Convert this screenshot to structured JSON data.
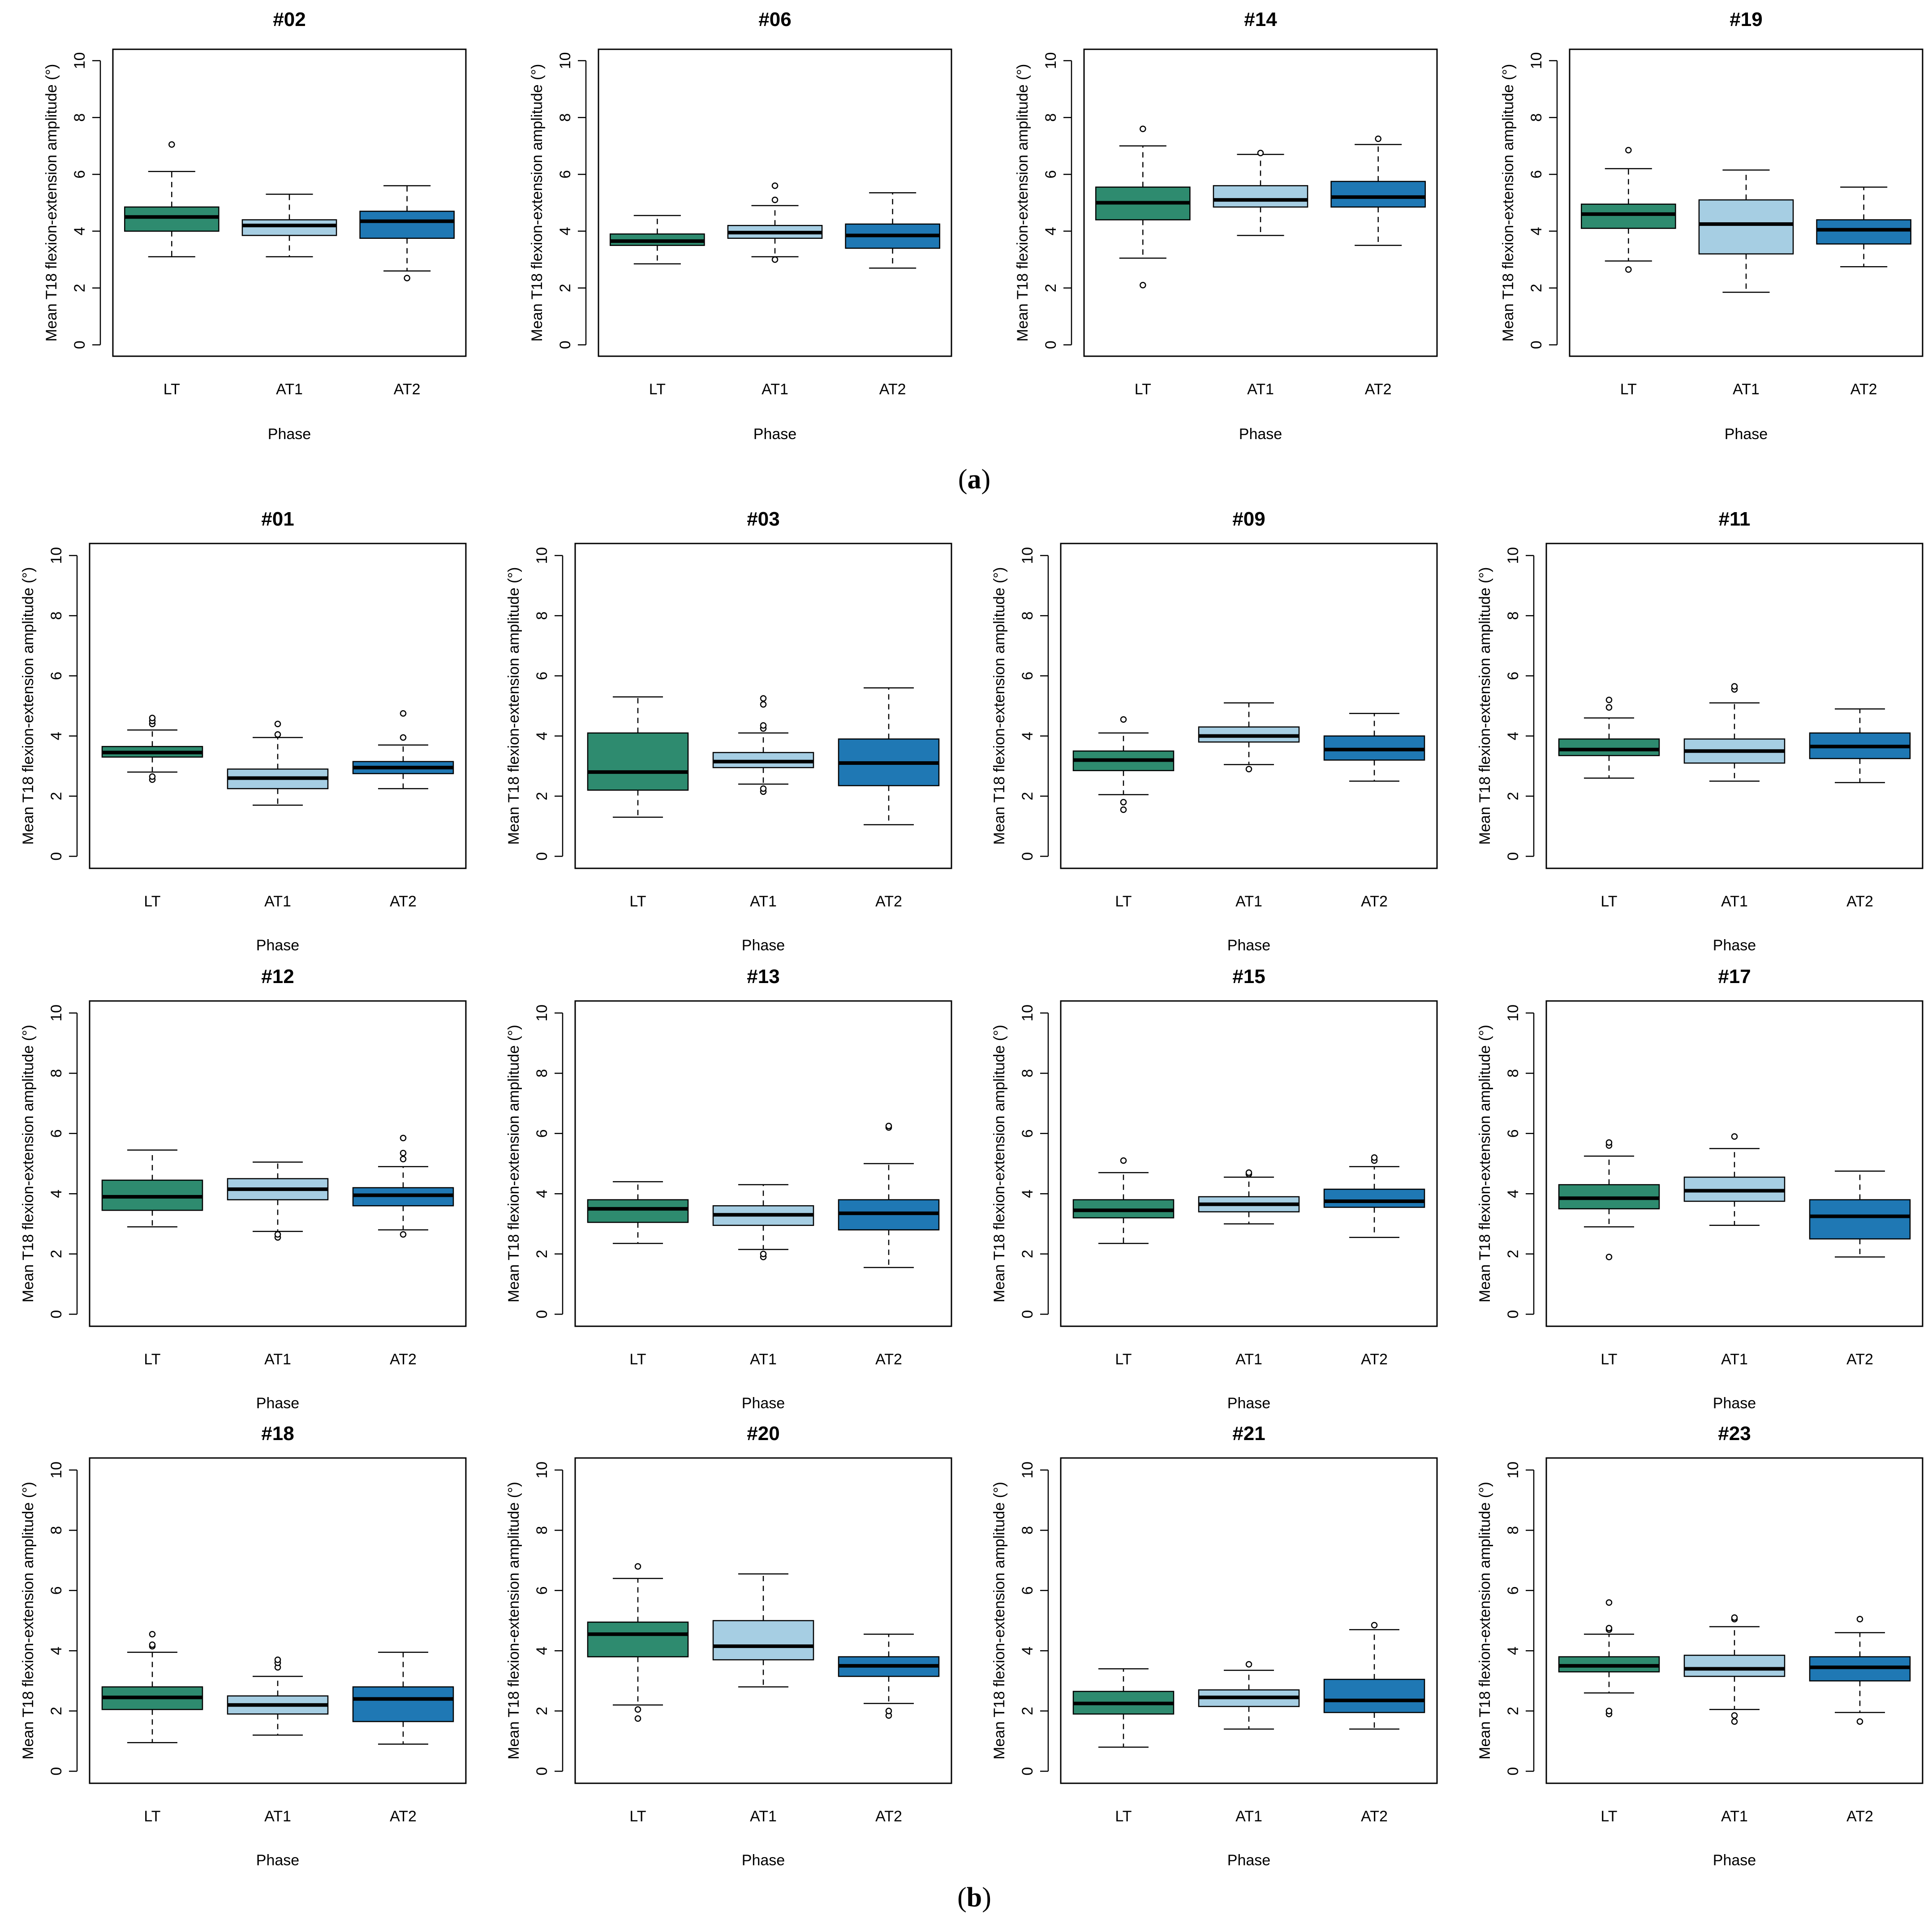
{
  "figure": {
    "section_a_label": "(a)",
    "section_b_label": "(b)",
    "label_open": "(",
    "label_close": ")",
    "section_a_letter": "a",
    "section_b_letter": "b"
  },
  "colors": {
    "LT": "#2e8b6f",
    "AT1": "#a6cee3",
    "AT2": "#1f78b4",
    "median": "#000000",
    "frame": "#000000"
  },
  "chart_data": [
    {
      "section": "a",
      "type": "boxplot",
      "title": "#02",
      "xlabel": "Phase",
      "ylabel": "Mean T18 flexion-extension amplitude (°)",
      "ylim": [
        0,
        10
      ],
      "yticks": [
        0,
        2,
        4,
        6,
        8,
        10
      ],
      "categories": [
        "LT",
        "AT1",
        "AT2"
      ],
      "boxes": [
        {
          "phase": "LT",
          "lower_whisker": 3.1,
          "q1": 4.0,
          "median": 4.5,
          "q3": 4.85,
          "upper_whisker": 6.1,
          "outliers": [
            7.05
          ]
        },
        {
          "phase": "AT1",
          "lower_whisker": 3.1,
          "q1": 3.85,
          "median": 4.2,
          "q3": 4.4,
          "upper_whisker": 5.3,
          "outliers": []
        },
        {
          "phase": "AT2",
          "lower_whisker": 2.6,
          "q1": 3.75,
          "median": 4.35,
          "q3": 4.7,
          "upper_whisker": 5.6,
          "outliers": [
            2.35
          ]
        }
      ]
    },
    {
      "section": "a",
      "type": "boxplot",
      "title": "#06",
      "xlabel": "Phase",
      "ylabel": "Mean T18 flexion-extension amplitude (°)",
      "ylim": [
        0,
        10
      ],
      "yticks": [
        0,
        2,
        4,
        6,
        8,
        10
      ],
      "categories": [
        "LT",
        "AT1",
        "AT2"
      ],
      "boxes": [
        {
          "phase": "LT",
          "lower_whisker": 2.85,
          "q1": 3.5,
          "median": 3.65,
          "q3": 3.9,
          "upper_whisker": 4.55,
          "outliers": []
        },
        {
          "phase": "AT1",
          "lower_whisker": 3.1,
          "q1": 3.75,
          "median": 3.95,
          "q3": 4.2,
          "upper_whisker": 4.9,
          "outliers": [
            3.0,
            5.1,
            5.6
          ]
        },
        {
          "phase": "AT2",
          "lower_whisker": 2.7,
          "q1": 3.4,
          "median": 3.85,
          "q3": 4.25,
          "upper_whisker": 5.35,
          "outliers": []
        }
      ]
    },
    {
      "section": "a",
      "type": "boxplot",
      "title": "#14",
      "xlabel": "Phase",
      "ylabel": "Mean T18 flexion-extension amplitude (°)",
      "ylim": [
        0,
        10
      ],
      "yticks": [
        0,
        2,
        4,
        6,
        8,
        10
      ],
      "categories": [
        "LT",
        "AT1",
        "AT2"
      ],
      "boxes": [
        {
          "phase": "LT",
          "lower_whisker": 3.05,
          "q1": 4.4,
          "median": 5.0,
          "q3": 5.55,
          "upper_whisker": 7.0,
          "outliers": [
            2.1,
            7.6
          ]
        },
        {
          "phase": "AT1",
          "lower_whisker": 3.85,
          "q1": 4.85,
          "median": 5.1,
          "q3": 5.6,
          "upper_whisker": 6.7,
          "outliers": [
            6.75
          ]
        },
        {
          "phase": "AT2",
          "lower_whisker": 3.5,
          "q1": 4.85,
          "median": 5.2,
          "q3": 5.75,
          "upper_whisker": 7.05,
          "outliers": [
            7.25
          ]
        }
      ]
    },
    {
      "section": "a",
      "type": "boxplot",
      "title": "#19",
      "xlabel": "Phase",
      "ylabel": "Mean T18 flexion-extension amplitude (°)",
      "ylim": [
        0,
        10
      ],
      "yticks": [
        0,
        2,
        4,
        6,
        8,
        10
      ],
      "categories": [
        "LT",
        "AT1",
        "AT2"
      ],
      "boxes": [
        {
          "phase": "LT",
          "lower_whisker": 2.95,
          "q1": 4.1,
          "median": 4.6,
          "q3": 4.95,
          "upper_whisker": 6.2,
          "outliers": [
            2.65,
            6.85
          ]
        },
        {
          "phase": "AT1",
          "lower_whisker": 1.85,
          "q1": 3.2,
          "median": 4.25,
          "q3": 5.1,
          "upper_whisker": 6.15,
          "outliers": []
        },
        {
          "phase": "AT2",
          "lower_whisker": 2.75,
          "q1": 3.55,
          "median": 4.05,
          "q3": 4.4,
          "upper_whisker": 5.55,
          "outliers": []
        }
      ]
    },
    {
      "section": "b",
      "type": "boxplot",
      "title": "#01",
      "xlabel": "Phase",
      "ylabel": "Mean T18 flexion-extension amplitude (°)",
      "ylim": [
        0,
        10
      ],
      "yticks": [
        0,
        2,
        4,
        6,
        8,
        10
      ],
      "categories": [
        "LT",
        "AT1",
        "AT2"
      ],
      "boxes": [
        {
          "phase": "LT",
          "lower_whisker": 2.8,
          "q1": 3.3,
          "median": 3.45,
          "q3": 3.65,
          "upper_whisker": 4.2,
          "outliers": [
            2.55,
            2.65,
            4.4,
            4.5,
            4.6
          ]
        },
        {
          "phase": "AT1",
          "lower_whisker": 1.7,
          "q1": 2.25,
          "median": 2.6,
          "q3": 2.9,
          "upper_whisker": 3.95,
          "outliers": [
            4.05,
            4.4
          ]
        },
        {
          "phase": "AT2",
          "lower_whisker": 2.25,
          "q1": 2.75,
          "median": 2.95,
          "q3": 3.15,
          "upper_whisker": 3.7,
          "outliers": [
            3.95,
            4.75
          ]
        }
      ]
    },
    {
      "section": "b",
      "type": "boxplot",
      "title": "#03",
      "xlabel": "Phase",
      "ylabel": "Mean T18 flexion-extension amplitude (°)",
      "ylim": [
        0,
        10
      ],
      "yticks": [
        0,
        2,
        4,
        6,
        8,
        10
      ],
      "categories": [
        "LT",
        "AT1",
        "AT2"
      ],
      "boxes": [
        {
          "phase": "LT",
          "lower_whisker": 1.3,
          "q1": 2.2,
          "median": 2.8,
          "q3": 4.1,
          "upper_whisker": 5.3,
          "outliers": []
        },
        {
          "phase": "AT1",
          "lower_whisker": 2.4,
          "q1": 2.95,
          "median": 3.15,
          "q3": 3.45,
          "upper_whisker": 4.1,
          "outliers": [
            2.15,
            2.25,
            4.25,
            4.35,
            5.05,
            5.25
          ]
        },
        {
          "phase": "AT2",
          "lower_whisker": 1.05,
          "q1": 2.35,
          "median": 3.1,
          "q3": 3.9,
          "upper_whisker": 5.6,
          "outliers": []
        }
      ]
    },
    {
      "section": "b",
      "type": "boxplot",
      "title": "#09",
      "xlabel": "Phase",
      "ylabel": "Mean T18 flexion-extension amplitude (°)",
      "ylim": [
        0,
        10
      ],
      "yticks": [
        0,
        2,
        4,
        6,
        8,
        10
      ],
      "categories": [
        "LT",
        "AT1",
        "AT2"
      ],
      "boxes": [
        {
          "phase": "LT",
          "lower_whisker": 2.05,
          "q1": 2.85,
          "median": 3.2,
          "q3": 3.5,
          "upper_whisker": 4.1,
          "outliers": [
            1.55,
            1.8,
            4.55
          ]
        },
        {
          "phase": "AT1",
          "lower_whisker": 3.05,
          "q1": 3.8,
          "median": 4.0,
          "q3": 4.3,
          "upper_whisker": 5.1,
          "outliers": [
            2.9
          ]
        },
        {
          "phase": "AT2",
          "lower_whisker": 2.5,
          "q1": 3.2,
          "median": 3.55,
          "q3": 4.0,
          "upper_whisker": 4.75,
          "outliers": []
        }
      ]
    },
    {
      "section": "b",
      "type": "boxplot",
      "title": "#11",
      "xlabel": "Phase",
      "ylabel": "Mean T18 flexion-extension amplitude (°)",
      "ylim": [
        0,
        10
      ],
      "yticks": [
        0,
        2,
        4,
        6,
        8,
        10
      ],
      "categories": [
        "LT",
        "AT1",
        "AT2"
      ],
      "boxes": [
        {
          "phase": "LT",
          "lower_whisker": 2.6,
          "q1": 3.35,
          "median": 3.55,
          "q3": 3.9,
          "upper_whisker": 4.6,
          "outliers": [
            4.95,
            5.2
          ]
        },
        {
          "phase": "AT1",
          "lower_whisker": 2.5,
          "q1": 3.1,
          "median": 3.5,
          "q3": 3.9,
          "upper_whisker": 5.1,
          "outliers": [
            5.55,
            5.65
          ]
        },
        {
          "phase": "AT2",
          "lower_whisker": 2.45,
          "q1": 3.25,
          "median": 3.65,
          "q3": 4.1,
          "upper_whisker": 4.9,
          "outliers": []
        }
      ]
    },
    {
      "section": "b",
      "type": "boxplot",
      "title": "#12",
      "xlabel": "Phase",
      "ylabel": "Mean T18 flexion-extension amplitude (°)",
      "ylim": [
        0,
        10
      ],
      "yticks": [
        0,
        2,
        4,
        6,
        8,
        10
      ],
      "categories": [
        "LT",
        "AT1",
        "AT2"
      ],
      "boxes": [
        {
          "phase": "LT",
          "lower_whisker": 2.9,
          "q1": 3.45,
          "median": 3.9,
          "q3": 4.45,
          "upper_whisker": 5.45,
          "outliers": []
        },
        {
          "phase": "AT1",
          "lower_whisker": 2.75,
          "q1": 3.8,
          "median": 4.15,
          "q3": 4.5,
          "upper_whisker": 5.05,
          "outliers": [
            2.55,
            2.65
          ]
        },
        {
          "phase": "AT2",
          "lower_whisker": 2.8,
          "q1": 3.6,
          "median": 3.95,
          "q3": 4.2,
          "upper_whisker": 4.9,
          "outliers": [
            2.65,
            5.15,
            5.35,
            5.85
          ]
        }
      ]
    },
    {
      "section": "b",
      "type": "boxplot",
      "title": "#13",
      "xlabel": "Phase",
      "ylabel": "Mean T18 flexion-extension amplitude (°)",
      "ylim": [
        0,
        10
      ],
      "yticks": [
        0,
        2,
        4,
        6,
        8,
        10
      ],
      "categories": [
        "LT",
        "AT1",
        "AT2"
      ],
      "boxes": [
        {
          "phase": "LT",
          "lower_whisker": 2.35,
          "q1": 3.05,
          "median": 3.5,
          "q3": 3.8,
          "upper_whisker": 4.4,
          "outliers": []
        },
        {
          "phase": "AT1",
          "lower_whisker": 2.15,
          "q1": 2.95,
          "median": 3.3,
          "q3": 3.6,
          "upper_whisker": 4.3,
          "outliers": [
            1.9,
            2.0
          ]
        },
        {
          "phase": "AT2",
          "lower_whisker": 1.55,
          "q1": 2.8,
          "median": 3.35,
          "q3": 3.8,
          "upper_whisker": 5.0,
          "outliers": [
            6.2,
            6.25
          ]
        }
      ]
    },
    {
      "section": "b",
      "type": "boxplot",
      "title": "#15",
      "xlabel": "Phase",
      "ylabel": "Mean T18 flexion-extension amplitude (°)",
      "ylim": [
        0,
        10
      ],
      "yticks": [
        0,
        2,
        4,
        6,
        8,
        10
      ],
      "categories": [
        "LT",
        "AT1",
        "AT2"
      ],
      "boxes": [
        {
          "phase": "LT",
          "lower_whisker": 2.35,
          "q1": 3.2,
          "median": 3.45,
          "q3": 3.8,
          "upper_whisker": 4.7,
          "outliers": [
            5.1
          ]
        },
        {
          "phase": "AT1",
          "lower_whisker": 3.0,
          "q1": 3.4,
          "median": 3.65,
          "q3": 3.9,
          "upper_whisker": 4.55,
          "outliers": [
            4.65,
            4.7
          ]
        },
        {
          "phase": "AT2",
          "lower_whisker": 2.55,
          "q1": 3.55,
          "median": 3.75,
          "q3": 4.15,
          "upper_whisker": 4.9,
          "outliers": [
            5.1,
            5.2
          ]
        }
      ]
    },
    {
      "section": "b",
      "type": "boxplot",
      "title": "#17",
      "xlabel": "Phase",
      "ylabel": "Mean T18 flexion-extension amplitude (°)",
      "ylim": [
        0,
        10
      ],
      "yticks": [
        0,
        2,
        4,
        6,
        8,
        10
      ],
      "categories": [
        "LT",
        "AT1",
        "AT2"
      ],
      "boxes": [
        {
          "phase": "LT",
          "lower_whisker": 2.9,
          "q1": 3.5,
          "median": 3.85,
          "q3": 4.3,
          "upper_whisker": 5.25,
          "outliers": [
            1.9,
            5.6,
            5.7
          ]
        },
        {
          "phase": "AT1",
          "lower_whisker": 2.95,
          "q1": 3.75,
          "median": 4.1,
          "q3": 4.55,
          "upper_whisker": 5.5,
          "outliers": [
            5.9
          ]
        },
        {
          "phase": "AT2",
          "lower_whisker": 1.9,
          "q1": 2.5,
          "median": 3.25,
          "q3": 3.8,
          "upper_whisker": 4.75,
          "outliers": []
        }
      ]
    },
    {
      "section": "b",
      "type": "boxplot",
      "title": "#18",
      "xlabel": "Phase",
      "ylabel": "Mean T18 flexion-extension amplitude (°)",
      "ylim": [
        0,
        10
      ],
      "yticks": [
        0,
        2,
        4,
        6,
        8,
        10
      ],
      "categories": [
        "LT",
        "AT1",
        "AT2"
      ],
      "boxes": [
        {
          "phase": "LT",
          "lower_whisker": 0.95,
          "q1": 2.05,
          "median": 2.45,
          "q3": 2.8,
          "upper_whisker": 3.95,
          "outliers": [
            4.15,
            4.2,
            4.55
          ]
        },
        {
          "phase": "AT1",
          "lower_whisker": 1.2,
          "q1": 1.9,
          "median": 2.2,
          "q3": 2.5,
          "upper_whisker": 3.15,
          "outliers": [
            3.45,
            3.6,
            3.7
          ]
        },
        {
          "phase": "AT2",
          "lower_whisker": 0.9,
          "q1": 1.65,
          "median": 2.4,
          "q3": 2.8,
          "upper_whisker": 3.95,
          "outliers": []
        }
      ]
    },
    {
      "section": "b",
      "type": "boxplot",
      "title": "#20",
      "xlabel": "Phase",
      "ylabel": "Mean T18 flexion-extension amplitude (°)",
      "ylim": [
        0,
        10
      ],
      "yticks": [
        0,
        2,
        4,
        6,
        8,
        10
      ],
      "categories": [
        "LT",
        "AT1",
        "AT2"
      ],
      "boxes": [
        {
          "phase": "LT",
          "lower_whisker": 2.2,
          "q1": 3.8,
          "median": 4.55,
          "q3": 4.95,
          "upper_whisker": 6.4,
          "outliers": [
            1.75,
            2.05,
            6.8
          ]
        },
        {
          "phase": "AT1",
          "lower_whisker": 2.8,
          "q1": 3.7,
          "median": 4.15,
          "q3": 5.0,
          "upper_whisker": 6.55,
          "outliers": []
        },
        {
          "phase": "AT2",
          "lower_whisker": 2.25,
          "q1": 3.15,
          "median": 3.5,
          "q3": 3.8,
          "upper_whisker": 4.55,
          "outliers": [
            1.85,
            2.0
          ]
        }
      ]
    },
    {
      "section": "b",
      "type": "boxplot",
      "title": "#21",
      "xlabel": "Phase",
      "ylabel": "Mean T18 flexion-extension amplitude (°)",
      "ylim": [
        0,
        10
      ],
      "yticks": [
        0,
        2,
        4,
        6,
        8,
        10
      ],
      "categories": [
        "LT",
        "AT1",
        "AT2"
      ],
      "boxes": [
        {
          "phase": "LT",
          "lower_whisker": 0.8,
          "q1": 1.9,
          "median": 2.25,
          "q3": 2.65,
          "upper_whisker": 3.4,
          "outliers": []
        },
        {
          "phase": "AT1",
          "lower_whisker": 1.4,
          "q1": 2.15,
          "median": 2.45,
          "q3": 2.7,
          "upper_whisker": 3.35,
          "outliers": [
            3.55
          ]
        },
        {
          "phase": "AT2",
          "lower_whisker": 1.4,
          "q1": 1.95,
          "median": 2.35,
          "q3": 3.05,
          "upper_whisker": 4.7,
          "outliers": [
            4.85
          ]
        }
      ]
    },
    {
      "section": "b",
      "type": "boxplot",
      "title": "#23",
      "xlabel": "Phase",
      "ylabel": "Mean T18 flexion-extension amplitude (°)",
      "ylim": [
        0,
        10
      ],
      "yticks": [
        0,
        2,
        4,
        6,
        8,
        10
      ],
      "categories": [
        "LT",
        "AT1",
        "AT2"
      ],
      "boxes": [
        {
          "phase": "LT",
          "lower_whisker": 2.6,
          "q1": 3.3,
          "median": 3.5,
          "q3": 3.8,
          "upper_whisker": 4.55,
          "outliers": [
            1.9,
            2.0,
            4.7,
            4.75,
            5.6
          ]
        },
        {
          "phase": "AT1",
          "lower_whisker": 2.05,
          "q1": 3.15,
          "median": 3.4,
          "q3": 3.85,
          "upper_whisker": 4.8,
          "outliers": [
            1.65,
            1.85,
            5.05,
            5.1
          ]
        },
        {
          "phase": "AT2",
          "lower_whisker": 1.95,
          "q1": 3.0,
          "median": 3.45,
          "q3": 3.8,
          "upper_whisker": 4.6,
          "outliers": [
            1.65,
            5.05
          ]
        }
      ]
    }
  ]
}
